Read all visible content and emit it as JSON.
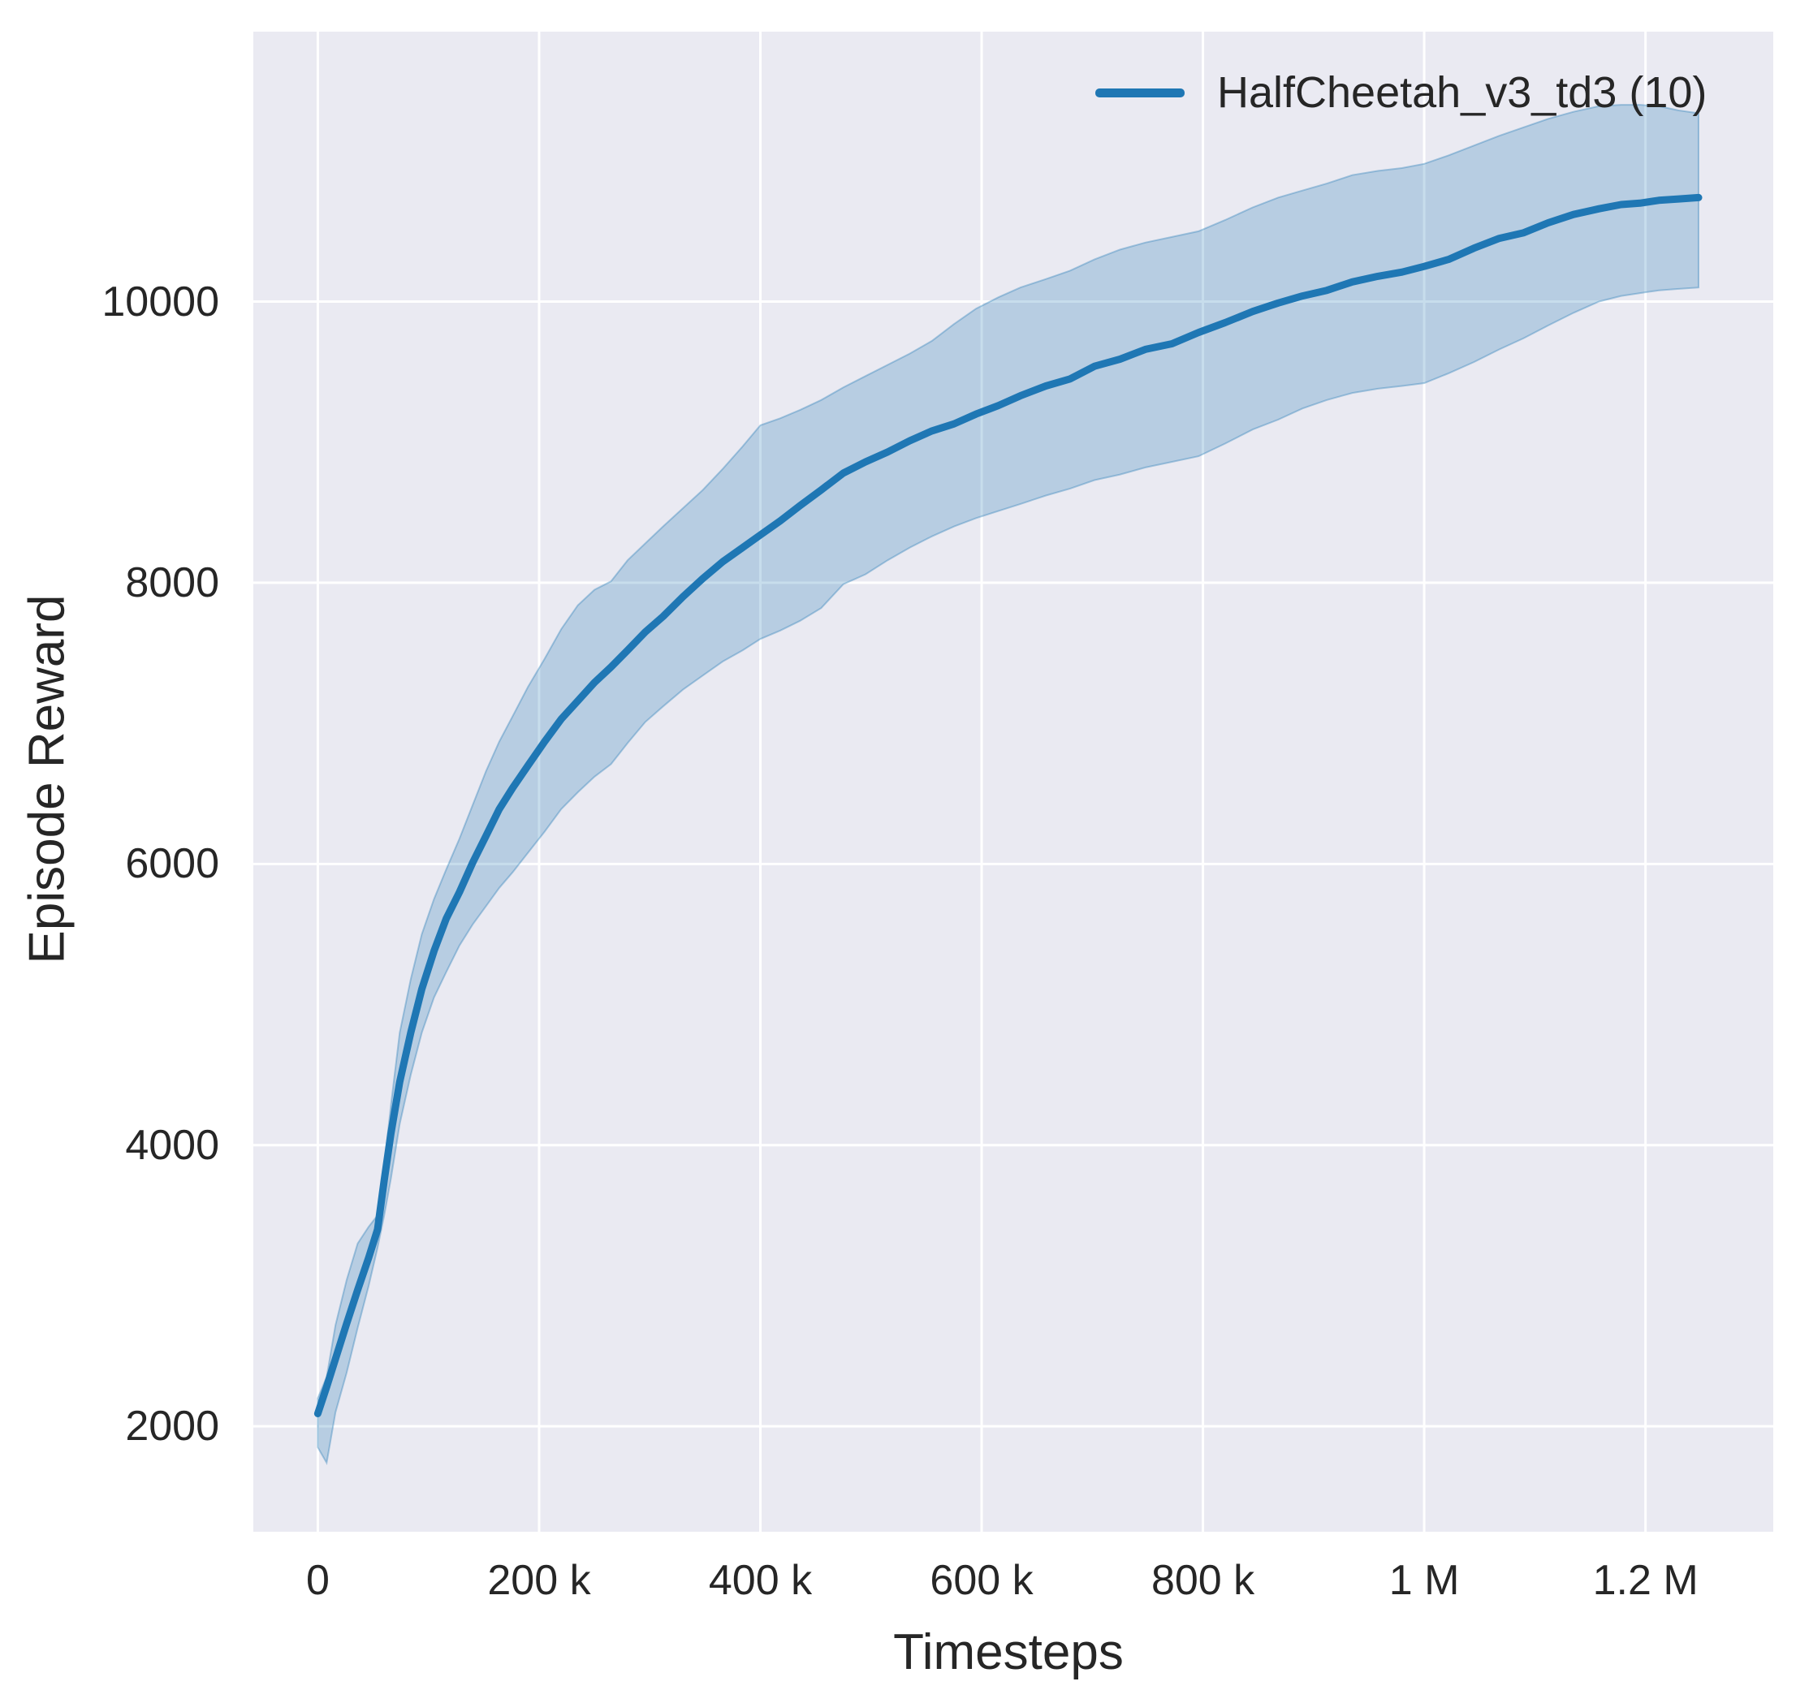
{
  "figure": {
    "background": "#ffffff",
    "axes_background": "#eaeaf2",
    "grid_color": "#ffffff",
    "text_color": "#262626",
    "accent_color": "#1f77b4"
  },
  "legend": {
    "label": "HalfCheetah_v3_td3 (10)"
  },
  "chart_data": {
    "type": "line",
    "title": "",
    "xlabel": "Timesteps",
    "ylabel": "Episode Reward",
    "legend_entries": [
      "HalfCheetah_v3_td3 (10)"
    ],
    "legend_position": "upper right",
    "grid": true,
    "band": "confidence interval across 10 seeds",
    "xlim": [
      -58300,
      1315500
    ],
    "ylim": [
      1250,
      11920
    ],
    "xticks": [
      {
        "value": 0,
        "label": "0"
      },
      {
        "value": 200000,
        "label": "200 k"
      },
      {
        "value": 400000,
        "label": "400 k"
      },
      {
        "value": 600000,
        "label": "600 k"
      },
      {
        "value": 800000,
        "label": "800 k"
      },
      {
        "value": 1000000,
        "label": "1 M"
      },
      {
        "value": 1200000,
        "label": "1.2 M"
      }
    ],
    "yticks": [
      {
        "value": 2000,
        "label": "2000"
      },
      {
        "value": 4000,
        "label": "4000"
      },
      {
        "value": 6000,
        "label": "6000"
      },
      {
        "value": 8000,
        "label": "8000"
      },
      {
        "value": 10000,
        "label": "10000"
      }
    ],
    "series": [
      {
        "name": "HalfCheetah_v3_td3 (10)",
        "color": "#1f77b4",
        "band_fill_alpha": 0.25,
        "band_edge_alpha": 0.35,
        "x": [
          0,
          8000,
          16000,
          26000,
          36000,
          46000,
          54000,
          60000,
          66000,
          74000,
          84000,
          94000,
          105000,
          116000,
          128000,
          140000,
          152000,
          164000,
          176000,
          190000,
          205000,
          220000,
          235000,
          250000,
          265000,
          280000,
          296000,
          312000,
          330000,
          348000,
          366000,
          384000,
          400000,
          418000,
          436000,
          455000,
          475000,
          495000,
          515000,
          535000,
          555000,
          575000,
          595000,
          615000,
          635000,
          658000,
          680000,
          702000,
          725000,
          748000,
          772000,
          796000,
          820000,
          845000,
          868000,
          890000,
          912000,
          935000,
          958000,
          980000,
          1000000,
          1022000,
          1045000,
          1068000,
          1090000,
          1112000,
          1135000,
          1158000,
          1178000,
          1195000,
          1212000,
          1230000,
          1248000
        ],
        "mean": [
          2090,
          2280,
          2480,
          2730,
          2970,
          3200,
          3400,
          3750,
          4080,
          4450,
          4800,
          5110,
          5380,
          5610,
          5800,
          6010,
          6200,
          6390,
          6540,
          6700,
          6870,
          7030,
          7160,
          7290,
          7400,
          7520,
          7650,
          7760,
          7900,
          8030,
          8150,
          8250,
          8340,
          8440,
          8550,
          8660,
          8780,
          8860,
          8930,
          9010,
          9080,
          9130,
          9200,
          9260,
          9330,
          9400,
          9450,
          9540,
          9590,
          9660,
          9700,
          9780,
          9850,
          9930,
          9990,
          10040,
          10080,
          10140,
          10180,
          10210,
          10250,
          10300,
          10380,
          10450,
          10490,
          10560,
          10620,
          10660,
          10690,
          10700,
          10720,
          10730,
          10740
        ],
        "lower": [
          1850,
          1740,
          2100,
          2380,
          2700,
          3000,
          3270,
          3500,
          3760,
          4150,
          4500,
          4800,
          5050,
          5230,
          5420,
          5570,
          5700,
          5830,
          5940,
          6080,
          6230,
          6390,
          6510,
          6620,
          6710,
          6860,
          7010,
          7120,
          7240,
          7340,
          7440,
          7520,
          7600,
          7660,
          7730,
          7820,
          7990,
          8060,
          8160,
          8250,
          8330,
          8400,
          8460,
          8510,
          8560,
          8620,
          8670,
          8730,
          8770,
          8820,
          8860,
          8900,
          8990,
          9090,
          9160,
          9240,
          9300,
          9350,
          9380,
          9400,
          9420,
          9490,
          9570,
          9660,
          9740,
          9830,
          9920,
          10000,
          10040,
          10060,
          10080,
          10090,
          10100
        ],
        "upper": [
          2200,
          2350,
          2720,
          3040,
          3300,
          3420,
          3500,
          3850,
          4280,
          4800,
          5180,
          5500,
          5750,
          5960,
          6180,
          6420,
          6660,
          6870,
          7050,
          7260,
          7460,
          7670,
          7840,
          7950,
          8010,
          8160,
          8280,
          8400,
          8530,
          8660,
          8810,
          8970,
          9120,
          9170,
          9230,
          9300,
          9390,
          9470,
          9550,
          9630,
          9720,
          9840,
          9950,
          10030,
          10100,
          10160,
          10220,
          10300,
          10370,
          10420,
          10460,
          10500,
          10580,
          10670,
          10740,
          10790,
          10840,
          10900,
          10930,
          10950,
          10980,
          11040,
          11110,
          11180,
          11240,
          11300,
          11350,
          11390,
          11400,
          11400,
          11390,
          11360,
          11340
        ]
      }
    ]
  }
}
